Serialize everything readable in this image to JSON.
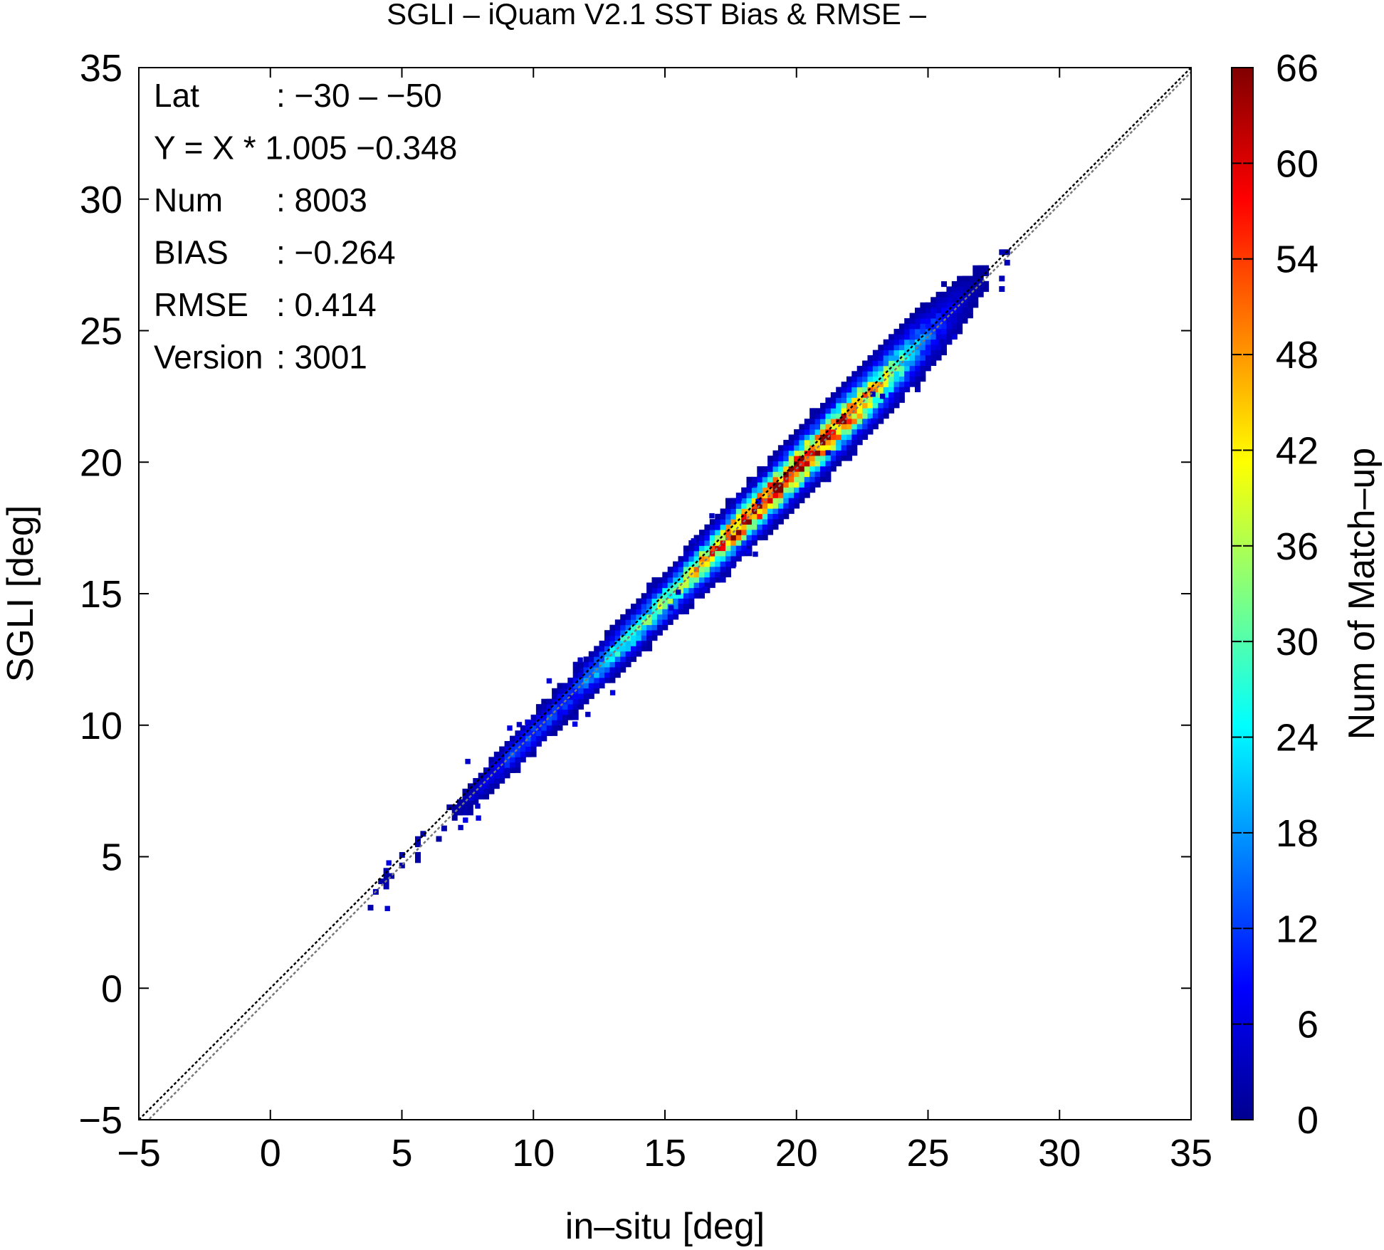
{
  "chart_data": {
    "type": "heatmap",
    "title": "SGLI – iQuam V2.1 SST Bias & RMSE  –",
    "xlabel": "in–situ [deg]",
    "ylabel": "SGLI [deg]",
    "xlim": [
      -5,
      35
    ],
    "ylim": [
      -5,
      35
    ],
    "xticks": [
      "−5",
      "0",
      "5",
      "10",
      "15",
      "20",
      "25",
      "30",
      "35"
    ],
    "yticks": [
      "−5",
      "0",
      "5",
      "10",
      "15",
      "20",
      "25",
      "30",
      "35"
    ],
    "grid": false,
    "colorbar": {
      "label": "Num of Match–up",
      "range": [
        0,
        66
      ],
      "ticks": [
        "0",
        "6",
        "12",
        "18",
        "24",
        "30",
        "36",
        "42",
        "48",
        "54",
        "60",
        "66"
      ],
      "colors": [
        "#00008f",
        "#0000ff",
        "#0080ff",
        "#00ffff",
        "#80ff80",
        "#ffff00",
        "#ff8000",
        "#ff0000",
        "#800000"
      ]
    },
    "reference_lines": [
      {
        "name": "1:1",
        "slope": 1,
        "intercept": 0,
        "color": "#000000"
      },
      {
        "name": "regression",
        "slope": 1.005,
        "intercept": -0.348,
        "color": "#777777"
      }
    ],
    "stats": [
      {
        "label": "Lat",
        "value": ": −30 – −50"
      },
      {
        "label": "Y = X * 1.005 −0.348",
        "value": ""
      },
      {
        "label": "Num",
        "value": ": 8003"
      },
      {
        "label": "BIAS",
        "value": ": −0.264"
      },
      {
        "label": "RMSE",
        "value": ": 0.414"
      },
      {
        "label": "Version",
        "value": ": 3001"
      }
    ],
    "density_model": {
      "bin_size": 0.2,
      "x_range": [
        3.5,
        28.0
      ],
      "peak_count": 62,
      "peak_x": 18.5,
      "bias": -0.264,
      "rmse": 0.414,
      "total": 8003
    }
  }
}
